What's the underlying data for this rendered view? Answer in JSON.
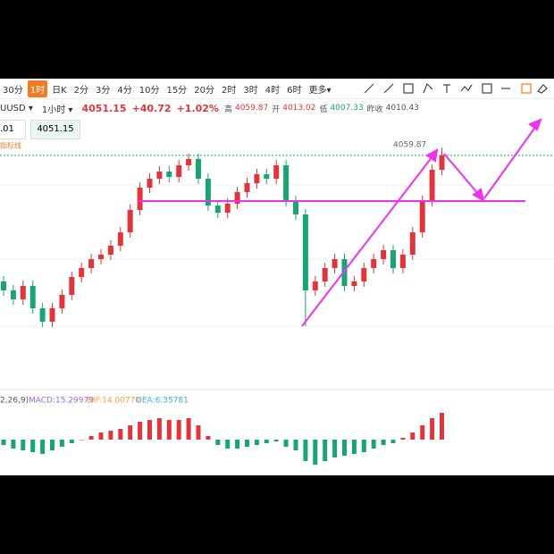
{
  "toolbar": {
    "intervals": [
      "30分",
      "1时",
      "日K",
      "2分",
      "3分",
      "4分",
      "10分",
      "15分",
      "20分",
      "2时",
      "3时",
      "4时",
      "6时",
      "更多▾"
    ]
  },
  "quote": {
    "symbol": "UUSD ▾",
    "period": "1小时 ▾",
    "price": "4051.15",
    "change": "+40.72",
    "change_pct": "+1.02%",
    "high_label": "高",
    "high": "4059.87",
    "open_label": "开",
    "open": "4013.02",
    "low_label": "低",
    "low": "4007.33",
    "prev_label": "昨收",
    "prev": "4010.43",
    "input": ".01",
    "price_box": "4051.15",
    "indicator": "指标线"
  },
  "chart_data": {
    "type": "candlestick",
    "open": [
      3910,
      3900,
      3890,
      3905,
      3880,
      3865,
      3880,
      3895,
      3915,
      3925,
      3935,
      3940,
      3950,
      3965,
      3990,
      4015,
      4025,
      4033,
      4027,
      4040,
      4047,
      4025,
      3995,
      3987,
      3997,
      4010,
      4020,
      4030,
      4025,
      4040,
      4000,
      3985,
      3900,
      3910,
      3925,
      3935,
      3905,
      3910,
      3925,
      3935,
      3945,
      3925,
      3940,
      3965,
      4000,
      4035
    ],
    "high": [
      3916,
      3906,
      3911,
      3911,
      3886,
      3886,
      3901,
      3921,
      3931,
      3941,
      3946,
      3956,
      3971,
      3996,
      4021,
      4031,
      4039,
      4039,
      4046,
      4053,
      4053,
      4031,
      4001,
      4003,
      4016,
      4026,
      4036,
      4036,
      4046,
      4046,
      4006,
      3991,
      3916,
      3931,
      3941,
      3941,
      3916,
      3931,
      3941,
      3951,
      3951,
      3946,
      3971,
      4006,
      4041,
      4059.87
    ],
    "low": [
      3894,
      3884,
      3884,
      3874,
      3859,
      3859,
      3874,
      3889,
      3909,
      3919,
      3929,
      3934,
      3944,
      3959,
      3984,
      4009,
      4019,
      4021,
      4021,
      4034,
      4019,
      3989,
      3981,
      3981,
      3991,
      4004,
      4014,
      4019,
      4019,
      3994,
      3979,
      3860,
      3894,
      3904,
      3919,
      3899,
      3899,
      3904,
      3919,
      3929,
      3919,
      3919,
      3934,
      3959,
      3994,
      4029
    ],
    "close": [
      3900,
      3890,
      3905,
      3880,
      3865,
      3880,
      3895,
      3915,
      3925,
      3935,
      3940,
      3950,
      3965,
      3990,
      4015,
      4025,
      4033,
      4027,
      4040,
      4047,
      4025,
      3995,
      3987,
      3997,
      4010,
      4020,
      4030,
      4025,
      4040,
      4000,
      3985,
      3900,
      3910,
      3925,
      3935,
      3905,
      3910,
      3925,
      3935,
      3945,
      3925,
      3940,
      3965,
      4000,
      4035,
      4051.15
    ],
    "up_color": "#e0353b",
    "down_color": "#17a673",
    "ylim": [
      3795,
      4075
    ],
    "high_annotation": "4059.87",
    "macd": {
      "params": "2,26,9)",
      "macd": "MACD:15.29979",
      "dif": "DIF:14.00770",
      "dea": "DEA:6.35781",
      "ylim": [
        -20,
        20
      ],
      "values": [
        -3,
        -5,
        -6,
        -7,
        -8,
        -6,
        -4,
        -2,
        0,
        2,
        4,
        5,
        6,
        8,
        10,
        11,
        12,
        11,
        11,
        12,
        8,
        2,
        -3,
        -5,
        -5,
        -4,
        -3,
        -2,
        -1,
        -4,
        -6,
        -12,
        -14,
        -12,
        -10,
        -9,
        -8,
        -7,
        -5,
        -3,
        -2,
        1,
        4,
        8,
        12,
        15
      ]
    }
  }
}
